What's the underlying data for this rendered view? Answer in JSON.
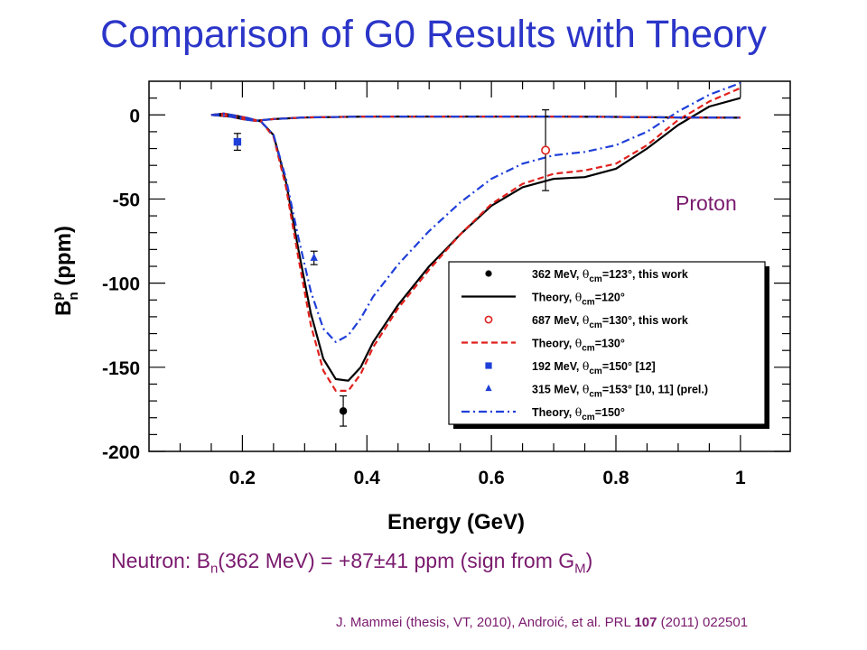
{
  "title": "Comparison of G0 Results with Theory",
  "neutron_note": {
    "prefix": "Neutron: B",
    "sub1": "n",
    "middle": "(362 MeV) = +87±41 ppm (sign from G",
    "sub2": "M",
    "suffix": ")"
  },
  "citation": {
    "text1": "J. Mammei (thesis, VT, 2010), Androić, et al. PRL ",
    "volume": "107",
    "text2": " (2011) 022501"
  },
  "colors": {
    "title": "#2b35c8",
    "annotation": "#7a1a6e",
    "black": "#000000",
    "red": "#e0201c",
    "blue": "#1f3fd9"
  },
  "chart_data": {
    "type": "line",
    "xlabel": "Energy (GeV)",
    "ylabel": {
      "base": "B",
      "sup": "p",
      "sub": "n",
      "unit": " (ppm)"
    },
    "xlim": [
      0.05,
      1.08
    ],
    "ylim": [
      -200,
      20
    ],
    "x_ticks": [
      0.2,
      0.4,
      0.6,
      0.8,
      1
    ],
    "x_tick_labels": [
      "0.2",
      "0.4",
      "0.6",
      "0.8",
      "1"
    ],
    "y_ticks": [
      0,
      -50,
      -100,
      -150,
      -200
    ],
    "y_tick_labels": [
      "0",
      "-50",
      "-100",
      "-150",
      "-200"
    ],
    "annotation": "Proton",
    "grid": false,
    "legend_position": "bottom-right",
    "series": [
      {
        "name": "Theory, θcm=120° (forward curve)",
        "kind": "line",
        "color": "#000000",
        "dash": "solid",
        "x": [
          0.15,
          0.17,
          0.19,
          0.21,
          0.23,
          0.25,
          0.27,
          0.29,
          0.31,
          0.33,
          0.35,
          0.37,
          0.39,
          0.41,
          0.45,
          0.5,
          0.55,
          0.6,
          0.65,
          0.7,
          0.75,
          0.8,
          0.85,
          0.9,
          0.95,
          1.0
        ],
        "y": [
          0,
          0.8,
          -0.5,
          -2,
          -4,
          -12,
          -40,
          -80,
          -118,
          -145,
          -157,
          -158,
          -150,
          -135,
          -113,
          -90,
          -71,
          -54,
          -43,
          -38,
          -37,
          -32,
          -20,
          -6,
          5,
          10
        ]
      },
      {
        "name": "Theory, θcm=130° (forward curve)",
        "kind": "line",
        "color": "#e0201c",
        "dash": "dash",
        "x": [
          0.15,
          0.17,
          0.19,
          0.21,
          0.23,
          0.25,
          0.27,
          0.29,
          0.31,
          0.33,
          0.35,
          0.37,
          0.39,
          0.41,
          0.45,
          0.5,
          0.55,
          0.6,
          0.65,
          0.7,
          0.75,
          0.8,
          0.85,
          0.9,
          0.95,
          1.0
        ],
        "y": [
          0,
          0.8,
          -0.5,
          -2,
          -4,
          -13,
          -43,
          -85,
          -125,
          -152,
          -164,
          -164,
          -154,
          -138,
          -115,
          -92,
          -71,
          -53,
          -41,
          -35,
          -33,
          -29,
          -18,
          -3,
          8,
          16
        ]
      },
      {
        "name": "Theory, θcm=150° (forward curve)",
        "kind": "line",
        "color": "#1f3fd9",
        "dash": "dashdot",
        "x": [
          0.15,
          0.17,
          0.19,
          0.21,
          0.23,
          0.25,
          0.27,
          0.29,
          0.31,
          0.33,
          0.35,
          0.37,
          0.39,
          0.41,
          0.45,
          0.5,
          0.55,
          0.6,
          0.65,
          0.7,
          0.75,
          0.8,
          0.85,
          0.9,
          0.95,
          1.0
        ],
        "y": [
          0,
          0.8,
          -0.5,
          -2,
          -4,
          -12,
          -38,
          -73,
          -105,
          -127,
          -135,
          -131,
          -121,
          -108,
          -89,
          -69,
          -52,
          -38,
          -29,
          -24,
          -22,
          -18,
          -10,
          2,
          12,
          19
        ]
      },
      {
        "name": "Theory, θcm=120° (backward curve)",
        "kind": "line",
        "color": "#000000",
        "dash": "solid",
        "x": [
          0.15,
          0.18,
          0.2,
          0.22,
          0.25,
          0.3,
          0.4,
          0.5,
          0.6,
          0.7,
          0.8,
          0.9,
          1.0
        ],
        "y": [
          0,
          -1,
          -2.5,
          -3.5,
          -2.5,
          -1.5,
          -1,
          -1,
          -1,
          -1,
          -1.2,
          -1.5,
          -1.7
        ]
      },
      {
        "name": "Theory, θcm=130° (backward curve)",
        "kind": "line",
        "color": "#e0201c",
        "dash": "dash",
        "x": [
          0.15,
          0.18,
          0.2,
          0.22,
          0.25,
          0.3,
          0.4,
          0.5,
          0.6,
          0.7,
          0.8,
          0.9,
          1.0
        ],
        "y": [
          0,
          -1,
          -2.5,
          -3.5,
          -2.5,
          -1.5,
          -1,
          -1,
          -1,
          -1,
          -1.2,
          -1.5,
          -1.7
        ]
      },
      {
        "name": "Theory, θcm=150° (backward curve)",
        "kind": "line",
        "color": "#1f3fd9",
        "dash": "dashdot",
        "x": [
          0.15,
          0.18,
          0.2,
          0.22,
          0.25,
          0.3,
          0.4,
          0.5,
          0.6,
          0.7,
          0.8,
          0.9,
          1.0
        ],
        "y": [
          0,
          -1,
          -2.5,
          -3.5,
          -2.5,
          -1.5,
          -1,
          -1,
          -1,
          -1,
          -1.2,
          -1.5,
          -1.7
        ]
      }
    ],
    "points": [
      {
        "name": "362 MeV, θcm=123°, this work",
        "x": 0.362,
        "y": -176,
        "err": 9,
        "marker": "circle-filled",
        "color": "#000000"
      },
      {
        "name": "687 MeV, θcm=130°, this work",
        "x": 0.687,
        "y": -21,
        "err": 24,
        "marker": "circle-open",
        "color": "#e0201c"
      },
      {
        "name": "192 MeV, θcm=150° [12]",
        "x": 0.192,
        "y": -16,
        "err": 5,
        "marker": "square",
        "color": "#1f3fd9"
      },
      {
        "name": "315 MeV, θcm=153° [10, 11] (prel.)",
        "x": 0.315,
        "y": -85,
        "err": 4,
        "marker": "triangle",
        "color": "#1f3fd9"
      }
    ],
    "legend": [
      {
        "kind": "marker",
        "marker": "circle-filled",
        "color": "#000000",
        "text": "362 MeV, ",
        "theta": "θ",
        "sub": "cm",
        "rest": "=123°, this work"
      },
      {
        "kind": "line",
        "dash": "solid",
        "color": "#000000",
        "text": "Theory, ",
        "theta": "θ",
        "sub": "cm",
        "rest": "=120°"
      },
      {
        "kind": "marker",
        "marker": "circle-open",
        "color": "#e0201c",
        "text": "687 MeV, ",
        "theta": "θ",
        "sub": "cm",
        "rest": "=130°, this work"
      },
      {
        "kind": "line",
        "dash": "dash",
        "color": "#e0201c",
        "text": "Theory, ",
        "theta": "θ",
        "sub": "cm",
        "rest": "=130°"
      },
      {
        "kind": "marker",
        "marker": "square",
        "color": "#1f3fd9",
        "text": "192 MeV, ",
        "theta": "θ",
        "sub": "cm",
        "rest": "=150° [12]"
      },
      {
        "kind": "marker",
        "marker": "triangle",
        "color": "#1f3fd9",
        "text": "315 MeV, ",
        "theta": "θ",
        "sub": "cm",
        "rest": "=153° [10, 11] (prel.)"
      },
      {
        "kind": "line",
        "dash": "dashdot",
        "color": "#1f3fd9",
        "text": "Theory, ",
        "theta": "θ",
        "sub": "cm",
        "rest": "=150°"
      }
    ]
  }
}
